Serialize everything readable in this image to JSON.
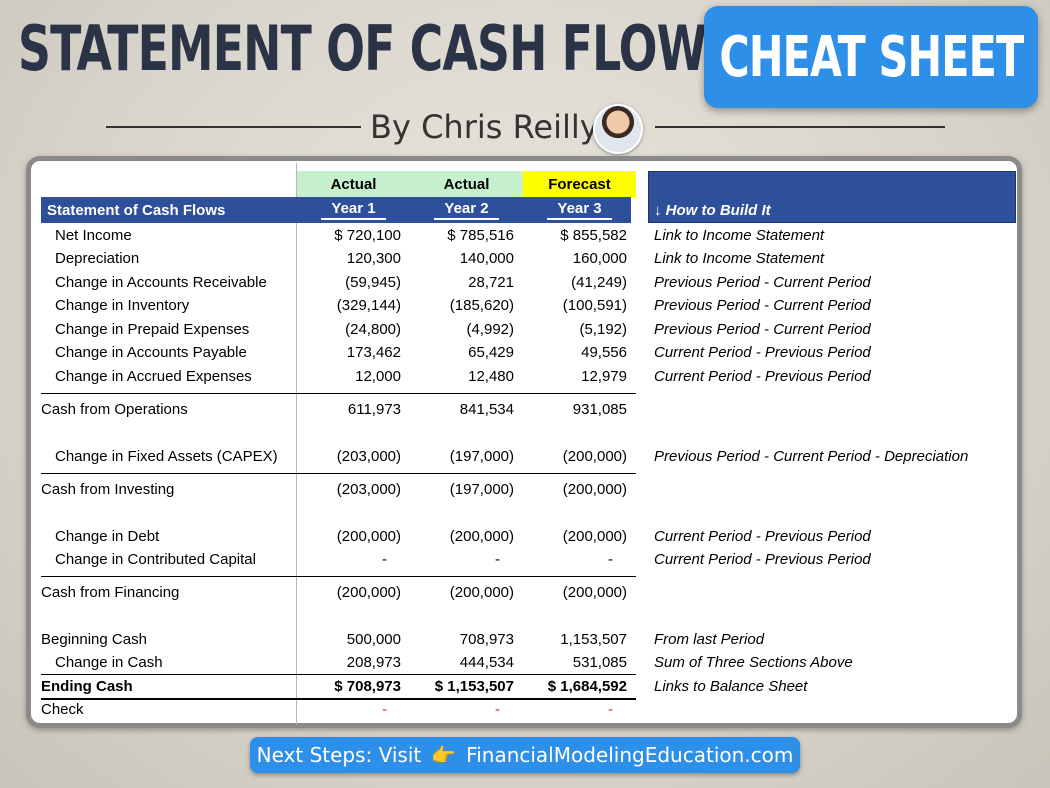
{
  "title": "STATEMENT OF CASH FLOWS",
  "badge": "CHEAT SHEET",
  "byline": "By Chris Reilly",
  "table": {
    "header_top": [
      "Actual",
      "Actual",
      "Forecast"
    ],
    "header_label": "Statement of Cash Flows",
    "years": [
      "Year 1",
      "Year 2",
      "Year 3"
    ],
    "how_label": "↓ How to Build It",
    "colors": {
      "actual": "#c6efce",
      "forecast": "#ffff00",
      "header": "#2e4f9a",
      "check": "#e02020"
    },
    "rows": {
      "net_income": {
        "label": "Net Income",
        "v": [
          "$ 720,100",
          "$ 785,516",
          "$ 855,582"
        ],
        "note": "Link to Income Statement"
      },
      "depreciation": {
        "label": "Depreciation",
        "v": [
          "120,300",
          "140,000",
          "160,000"
        ],
        "note": "Link to Income Statement"
      },
      "ar": {
        "label": "Change in Accounts Receivable",
        "v": [
          "(59,945)",
          "28,721",
          "(41,249)"
        ],
        "note": "Previous Period - Current Period"
      },
      "inventory": {
        "label": "Change in Inventory",
        "v": [
          "(329,144)",
          "(185,620)",
          "(100,591)"
        ],
        "note": "Previous Period - Current Period"
      },
      "prepaid": {
        "label": "Change in Prepaid Expenses",
        "v": [
          "(24,800)",
          "(4,992)",
          "(5,192)"
        ],
        "note": "Previous Period - Current Period"
      },
      "ap": {
        "label": "Change in Accounts Payable",
        "v": [
          "173,462",
          "65,429",
          "49,556"
        ],
        "note": "Current Period - Previous Period"
      },
      "accrued": {
        "label": "Change in Accrued Expenses",
        "v": [
          "12,000",
          "12,480",
          "12,979"
        ],
        "note": "Current Period - Previous Period"
      },
      "cfo": {
        "label": "Cash from Operations",
        "v": [
          "611,973",
          "841,534",
          "931,085"
        ],
        "note": ""
      },
      "capex": {
        "label": "Change in Fixed Assets (CAPEX)",
        "v": [
          "(203,000)",
          "(197,000)",
          "(200,000)"
        ],
        "note": "Previous Period - Current Period - Depreciation"
      },
      "cfi": {
        "label": "Cash from Investing",
        "v": [
          "(203,000)",
          "(197,000)",
          "(200,000)"
        ],
        "note": ""
      },
      "debt": {
        "label": "Change in Debt",
        "v": [
          "(200,000)",
          "(200,000)",
          "(200,000)"
        ],
        "note": "Current Period - Previous Period"
      },
      "capital": {
        "label": "Change in Contributed Capital",
        "v": [
          "-",
          "-",
          "-"
        ],
        "note": "Current Period - Previous Period"
      },
      "cff": {
        "label": "Cash from Financing",
        "v": [
          "(200,000)",
          "(200,000)",
          "(200,000)"
        ],
        "note": ""
      },
      "beginning": {
        "label": "Beginning Cash",
        "v": [
          "500,000",
          "708,973",
          "1,153,507"
        ],
        "note": "From last Period"
      },
      "change": {
        "label": "Change in Cash",
        "v": [
          "208,973",
          "444,534",
          "531,085"
        ],
        "note": "Sum of Three Sections Above"
      },
      "ending": {
        "label": "Ending Cash",
        "v": [
          "$ 708,973",
          "$ 1,153,507",
          "$ 1,684,592"
        ],
        "note": "Links to Balance Sheet"
      },
      "check": {
        "label": "Check",
        "v": [
          "-",
          "-",
          "-"
        ],
        "note": ""
      }
    }
  },
  "cta": {
    "prefix": "Next Steps: Visit",
    "icon": "pointing-hand-icon",
    "link": "FinancialModelingEducation.com"
  }
}
